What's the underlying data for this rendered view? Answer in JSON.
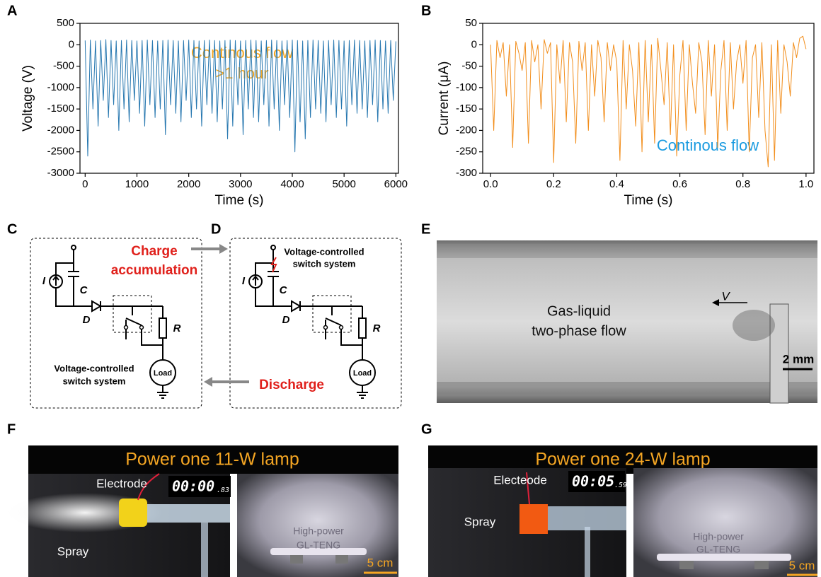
{
  "chart_data": [
    {
      "type": "line",
      "x_label": "Time (s)",
      "y_label": "Voltage (V)",
      "color": "#2878b0",
      "annotation": [
        "Continous flow",
        ">1 hour"
      ],
      "xlim": [
        -100,
        6050
      ],
      "ylim": [
        -3000,
        500
      ],
      "xticks": [
        0,
        1000,
        2000,
        3000,
        4000,
        5000,
        6000
      ],
      "yticks": [
        -3000,
        -2500,
        -2000,
        -1500,
        -1000,
        -500,
        0,
        500
      ],
      "x": [
        0,
        50,
        100,
        150,
        200,
        250,
        300,
        350,
        400,
        450,
        500,
        550,
        600,
        650,
        700,
        750,
        800,
        850,
        900,
        950,
        1000,
        1050,
        1100,
        1150,
        1200,
        1250,
        1300,
        1350,
        1400,
        1450,
        1500,
        1550,
        1600,
        1650,
        1700,
        1750,
        1800,
        1850,
        1900,
        1950,
        2000,
        2050,
        2100,
        2150,
        2200,
        2250,
        2300,
        2350,
        2400,
        2450,
        2500,
        2550,
        2600,
        2650,
        2700,
        2750,
        2800,
        2850,
        2900,
        2950,
        3000,
        3050,
        3100,
        3150,
        3200,
        3250,
        3300,
        3350,
        3400,
        3450,
        3500,
        3550,
        3600,
        3650,
        3700,
        3750,
        3800,
        3850,
        3900,
        3950,
        4000,
        4050,
        4100,
        4150,
        4200,
        4250,
        4300,
        4350,
        4400,
        4450,
        4500,
        4550,
        4600,
        4650,
        4700,
        4750,
        4800,
        4850,
        4900,
        4950,
        5000,
        5050,
        5100,
        5150,
        5200,
        5250,
        5300,
        5350,
        5400,
        5450,
        5500,
        5550,
        5600,
        5650,
        5700,
        5750,
        5800,
        5850,
        5900,
        5950,
        6000
      ],
      "values": [
        100,
        -2600,
        110,
        -1500,
        90,
        -1900,
        100,
        -1300,
        120,
        -1700,
        100,
        -1400,
        90,
        -2000,
        100,
        -1500,
        110,
        -1800,
        100,
        -1300,
        90,
        -1600,
        100,
        -1900,
        110,
        -1400,
        100,
        -1700,
        90,
        -1500,
        100,
        -2100,
        110,
        -1400,
        100,
        -1600,
        90,
        -1800,
        100,
        -1300,
        110,
        -1700,
        100,
        -1500,
        90,
        -1900,
        100,
        -1400,
        110,
        -1600,
        100,
        -1800,
        90,
        -1500,
        100,
        -2200,
        110,
        -1900,
        100,
        -1400,
        90,
        -2100,
        100,
        -1500,
        110,
        -1700,
        100,
        -1800,
        90,
        -1400,
        100,
        -1900,
        110,
        -1500,
        100,
        -2000,
        90,
        -1400,
        100,
        -1700,
        110,
        -2500,
        100,
        -1800,
        90,
        -2200,
        100,
        -1700,
        110,
        -1500,
        100,
        -1600,
        90,
        -1800,
        100,
        -1400,
        110,
        -1700,
        100,
        -1500,
        90,
        -1900,
        100,
        -1400,
        110,
        -1600,
        100,
        -1500,
        90,
        -1700,
        100,
        -1400,
        110,
        -1800,
        100,
        -1500,
        90,
        -1600,
        100,
        -1300,
        80
      ]
    },
    {
      "type": "line",
      "x_label": "Time (s)",
      "y_label": "Current (μA)",
      "color": "#f28e1c",
      "annotation": "Continous flow",
      "xlim": [
        -0.025,
        1.025
      ],
      "ylim": [
        -300,
        50
      ],
      "xticks": [
        {
          "value": 0,
          "label": "0.0"
        },
        0.2,
        0.4,
        0.6,
        0.8,
        {
          "value": 1,
          "label": "1.0"
        }
      ],
      "yticks": [
        -300,
        -250,
        -200,
        -150,
        -100,
        -50,
        0,
        50
      ],
      "x": [
        0,
        0.01,
        0.02,
        0.03,
        0.04,
        0.05,
        0.06,
        0.07,
        0.08,
        0.09,
        0.1,
        0.11,
        0.12,
        0.13,
        0.14,
        0.15,
        0.16,
        0.17,
        0.18,
        0.19,
        0.2,
        0.21,
        0.22,
        0.23,
        0.24,
        0.25,
        0.26,
        0.27,
        0.28,
        0.29,
        0.3,
        0.31,
        0.32,
        0.33,
        0.34,
        0.35,
        0.36,
        0.37,
        0.38,
        0.39,
        0.4,
        0.41,
        0.42,
        0.43,
        0.44,
        0.45,
        0.46,
        0.47,
        0.48,
        0.49,
        0.5,
        0.51,
        0.52,
        0.53,
        0.54,
        0.55,
        0.56,
        0.57,
        0.58,
        0.59,
        0.6,
        0.61,
        0.62,
        0.63,
        0.64,
        0.65,
        0.66,
        0.67,
        0.68,
        0.69,
        0.7,
        0.71,
        0.72,
        0.73,
        0.74,
        0.75,
        0.76,
        0.77,
        0.78,
        0.79,
        0.8,
        0.81,
        0.82,
        0.83,
        0.84,
        0.85,
        0.86,
        0.87,
        0.88,
        0.89,
        0.9,
        0.91,
        0.92,
        0.93,
        0.94,
        0.95,
        0.96,
        0.97,
        0.98,
        0.99,
        1
      ],
      "values": [
        0,
        -200,
        10,
        -30,
        5,
        -120,
        0,
        -240,
        8,
        -20,
        -60,
        5,
        -230,
        10,
        -40,
        0,
        -150,
        12,
        -20,
        5,
        -275,
        0,
        -90,
        10,
        -180,
        5,
        -40,
        -230,
        8,
        -60,
        5,
        -200,
        0,
        -120,
        10,
        -30,
        -180,
        5,
        -60,
        0,
        -40,
        -270,
        10,
        -150,
        0,
        -60,
        -190,
        5,
        -250,
        10,
        -180,
        0,
        -230,
        15,
        -60,
        -140,
        5,
        -210,
        0,
        -260,
        -70,
        10,
        -200,
        0,
        -90,
        -160,
        5,
        -40,
        -210,
        10,
        -120,
        0,
        -240,
        -60,
        10,
        -200,
        5,
        -150,
        -40,
        0,
        -90,
        10,
        -250,
        -30,
        0,
        -170,
        5,
        -200,
        -285,
        0,
        -270,
        10,
        -160,
        0,
        -40,
        -120,
        5,
        -30,
        15,
        20,
        -10
      ]
    }
  ],
  "panel_labels": [
    "A",
    "B",
    "C",
    "D",
    "E",
    "F",
    "G"
  ],
  "circuit_c": {
    "source": "I",
    "capacitor": "C",
    "diode": "D",
    "resistor": "R",
    "load": "Load",
    "caption": [
      "Voltage-controlled",
      "switch system"
    ]
  },
  "circuit_d": {
    "source": "I",
    "capacitor": "C",
    "diode": "D",
    "resistor": "R",
    "load": "Load",
    "caption": [
      "Voltage-controlled",
      "switch system"
    ]
  },
  "transition": {
    "charge": [
      "Charge",
      "accumulation"
    ],
    "discharge": "Discharge"
  },
  "image_e": {
    "velocity": "V",
    "caption": [
      "Gas-liquid",
      "two-phase flow"
    ],
    "scale": "2 mm"
  },
  "photo_f": {
    "title": "Power one 11-W lamp",
    "electrode": "Electrode",
    "timer": "00:00",
    "timer_fraction": ".83",
    "spray": "Spray",
    "lamp": [
      "High-power",
      "GL-TENG"
    ],
    "scale": "5 cm"
  },
  "photo_g": {
    "title": "Power one 24-W lamp",
    "electrode": "Electeode",
    "timer": "00:05",
    "timer_fraction": ".59",
    "spray": "Spray",
    "lamp": [
      "High-power",
      "GL-TENG"
    ],
    "scale": "5 cm"
  }
}
